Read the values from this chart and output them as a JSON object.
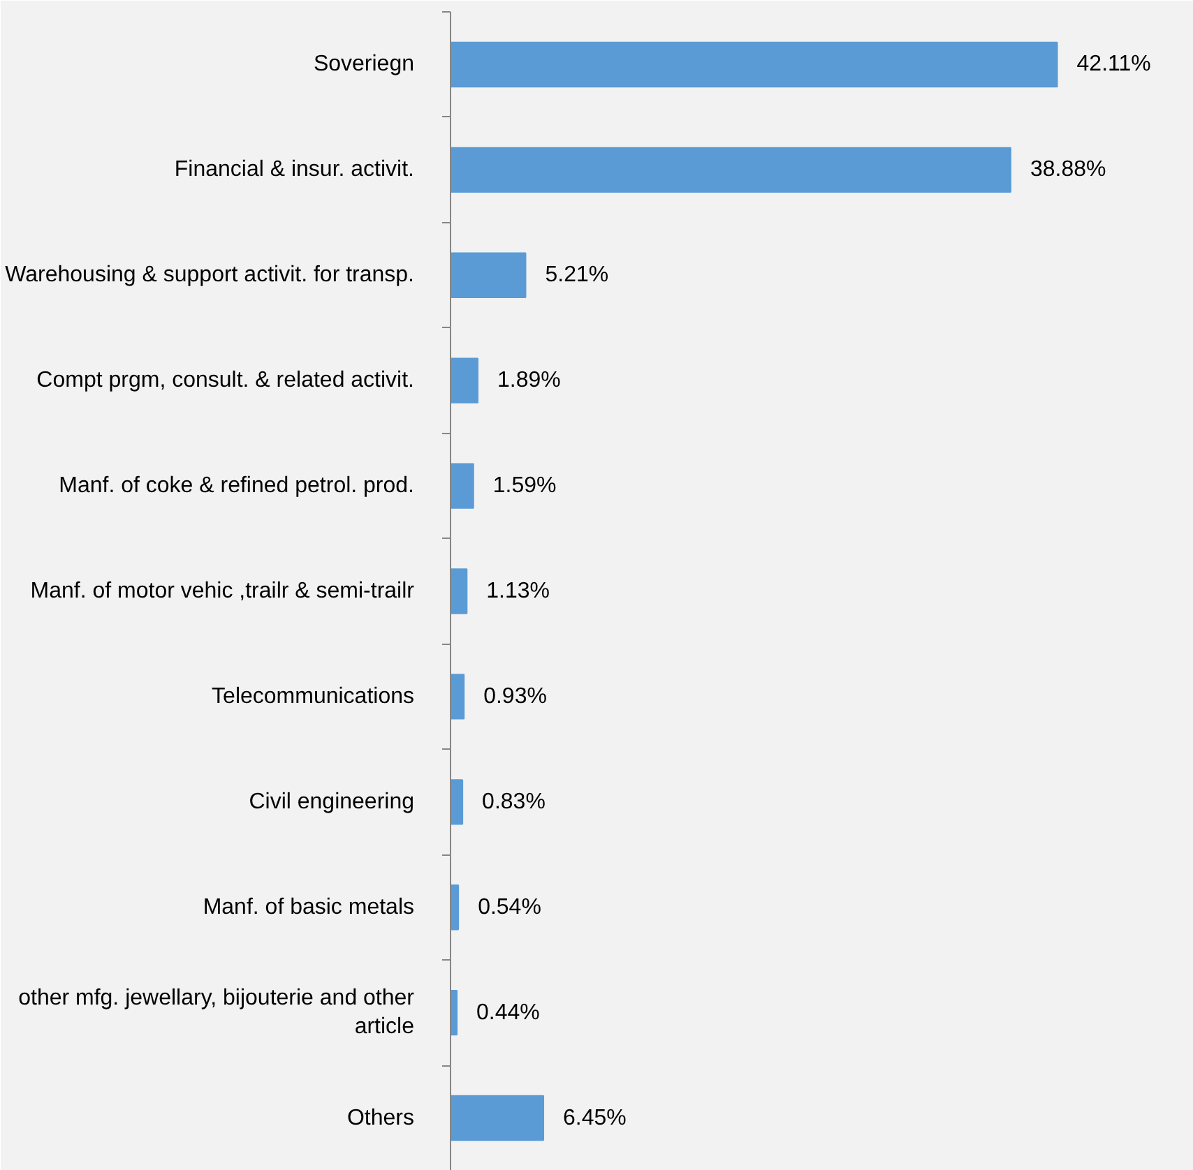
{
  "chart_data": {
    "type": "bar",
    "orientation": "horizontal",
    "categories": [
      "Soveriegn",
      "Financial & insur. activit.",
      "Warehousing & support activit. for transp.",
      "Compt prgm, consult. & related activit.",
      "Manf. of coke & refined petrol. prod.",
      "Manf. of motor vehic ,trailr & semi-trailr",
      "Telecommunications",
      "Civil engineering",
      "Manf. of basic metals",
      "other mfg. jewellary, bijouterie and other article",
      "Others"
    ],
    "values": [
      42.11,
      38.88,
      5.21,
      1.89,
      1.59,
      1.13,
      0.93,
      0.83,
      0.54,
      0.44,
      6.45
    ],
    "color": "#5b9bd5",
    "value_labels": [
      "42.11%",
      "38.88%",
      "5.21%",
      "1.89%",
      "1.59%",
      "1.13%",
      "0.93%",
      "0.83%",
      "0.54%",
      "0.44%",
      "6.45%"
    ]
  }
}
